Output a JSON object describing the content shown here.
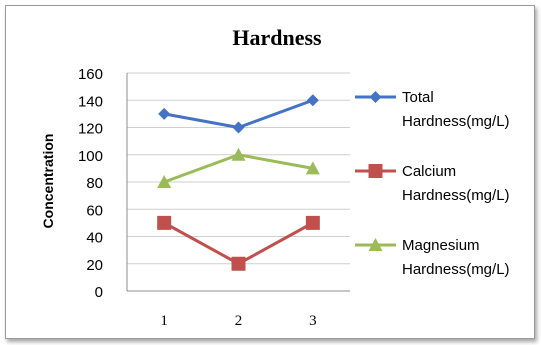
{
  "chart_data": {
    "type": "line",
    "title": "Hardness",
    "xlabel": "",
    "ylabel": "Concentration",
    "categories": [
      "1",
      "2",
      "3"
    ],
    "ylim": [
      0,
      160
    ],
    "yticks": [
      "0",
      "20",
      "40",
      "60",
      "80",
      "100",
      "120",
      "140",
      "160"
    ],
    "grid": true,
    "legend": "right",
    "series": [
      {
        "name": "Total Hardness(mg/L)",
        "legend_lines": [
          "Total",
          "Hardness(mg/L)"
        ],
        "values": [
          130,
          120,
          140
        ],
        "color": "#4472c4",
        "marker": "diamond"
      },
      {
        "name": "Calcium Hardness(mg/L)",
        "legend_lines": [
          "Calcium",
          "Hardness(mg/L)"
        ],
        "values": [
          50,
          20,
          50
        ],
        "color": "#c0504d",
        "marker": "square"
      },
      {
        "name": "Magnesium Hardness(mg/L)",
        "legend_lines": [
          "Magnesium",
          "Hardness(mg/L)"
        ],
        "values": [
          80,
          100,
          90
        ],
        "color": "#9bbb59",
        "marker": "triangle"
      }
    ]
  }
}
